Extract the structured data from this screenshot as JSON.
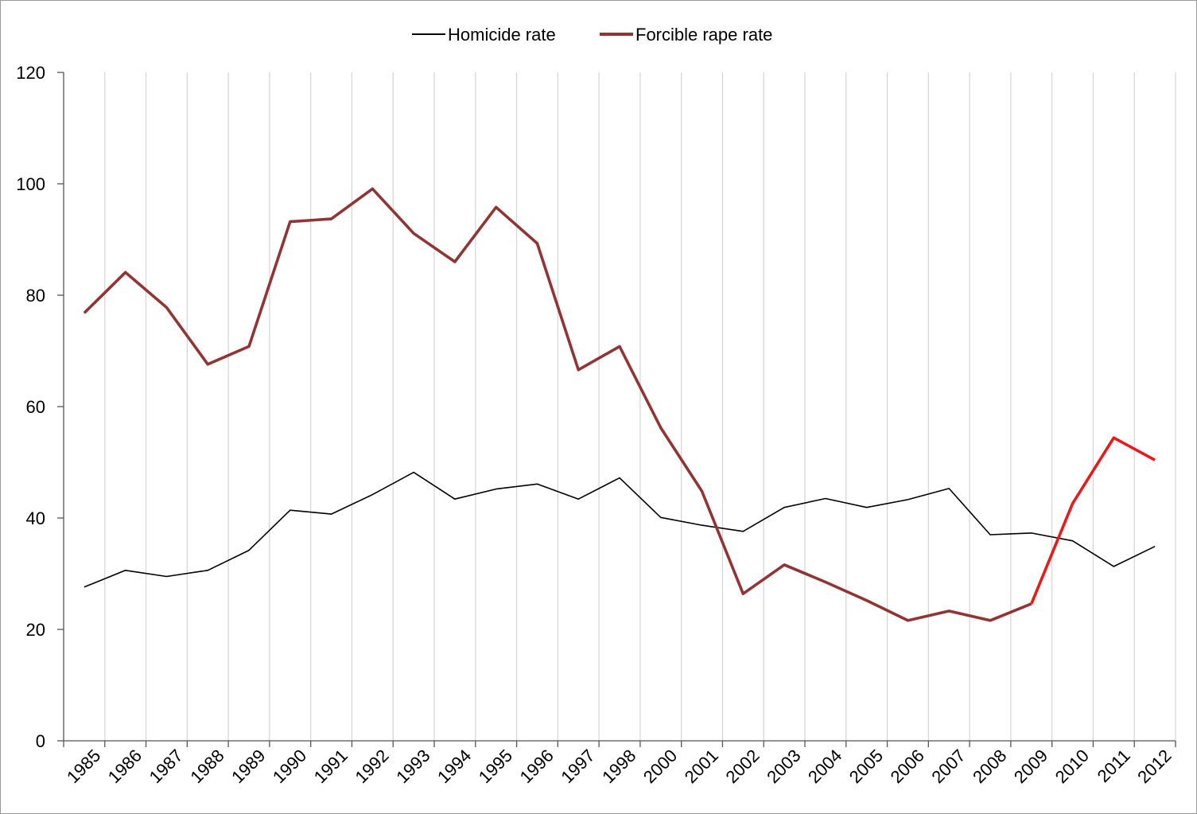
{
  "chart_data": {
    "type": "line",
    "title": "",
    "xlabel": "",
    "ylabel": "",
    "categories": [
      "1985",
      "1986",
      "1987",
      "1988",
      "1989",
      "1990",
      "1991",
      "1992",
      "1993",
      "1994",
      "1995",
      "1996",
      "1997",
      "1998",
      "2000",
      "2001",
      "2002",
      "2003",
      "2004",
      "2005",
      "2006",
      "2007",
      "2008",
      "2009",
      "2010",
      "2011",
      "2012"
    ],
    "ylim": [
      0,
      120
    ],
    "yticks": [
      0,
      20,
      40,
      60,
      80,
      100,
      120
    ],
    "grid": "vertical",
    "legend": "top-center",
    "series": [
      {
        "name": "Homicide rate",
        "color": "#000000",
        "values": [
          27.6,
          30.6,
          29.5,
          30.6,
          34.2,
          41.4,
          40.7,
          44.2,
          48.2,
          43.4,
          45.2,
          46.1,
          43.4,
          47.2,
          40.1,
          38.7,
          37.6,
          41.9,
          43.5,
          41.9,
          43.3,
          45.3,
          37.0,
          37.3,
          35.9,
          31.3,
          34.9
        ]
      },
      {
        "name": "Forcible rape rate",
        "color": "#923434",
        "highlight_color": "#e81b1b",
        "highlight_from_index": 23,
        "values": [
          76.8,
          84.1,
          77.8,
          67.6,
          70.8,
          93.2,
          93.7,
          99.1,
          91.1,
          86.0,
          95.8,
          89.3,
          66.6,
          70.8,
          56.2,
          44.8,
          26.4,
          31.6,
          28.5,
          25.2,
          21.6,
          23.3,
          21.6,
          24.6,
          42.6,
          54.4,
          50.4
        ]
      }
    ]
  }
}
